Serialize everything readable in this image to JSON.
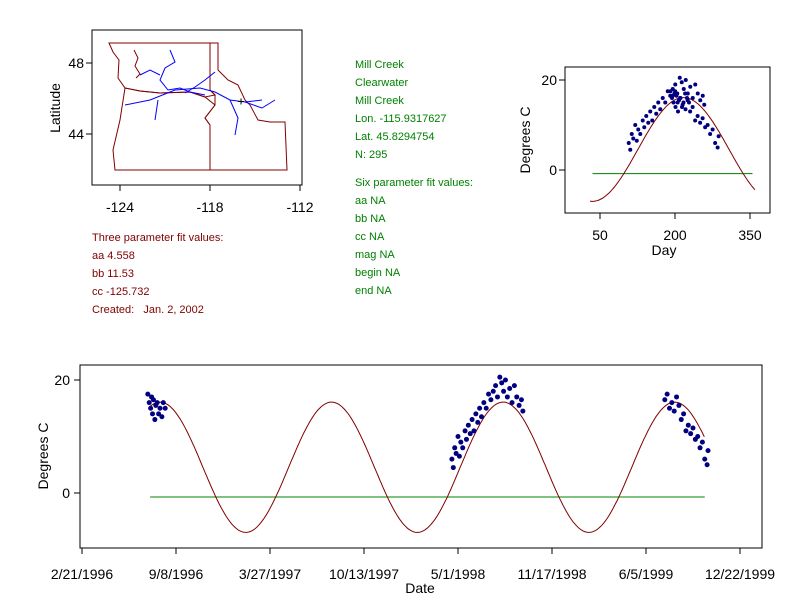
{
  "colors": {
    "fit": "#800000",
    "line": "#008000",
    "points": "#000080",
    "river": "#0000ff",
    "border": "#800000"
  },
  "site": {
    "name": "Mill Creek",
    "basin": "Clearwater",
    "stream": "Mill Creek",
    "lon": "Lon. -115.9317627",
    "lat": "Lat. 45.8294754",
    "n": "N: 295"
  },
  "six_fit": {
    "title": "Six parameter fit values:",
    "aa": "aa NA",
    "bb": "bb NA",
    "cc": "cc NA",
    "mag": "mag NA",
    "begin": "begin NA",
    "end": "end NA"
  },
  "three_fit": {
    "title": "Three parameter fit values:",
    "aa": "aa 4.558",
    "bb": "bb 11.53",
    "cc": "cc -125.732",
    "created": "Created:   Jan. 2, 2002"
  },
  "chart_data": [
    {
      "type": "map",
      "ylabel": "Latitude",
      "xticks": [
        "-124",
        "-118",
        "-112"
      ],
      "yticks": [
        "48",
        "44"
      ],
      "xlim": [
        -126,
        -110.2
      ],
      "site_lon": -115.93,
      "site_lat": 45.83
    },
    {
      "type": "scatter",
      "xlabel": "Day",
      "ylabel": "Degrees C",
      "xticks": [
        "50",
        "200",
        "350"
      ],
      "yticks": [
        "20",
        "0"
      ],
      "xlim": [
        -20,
        390
      ],
      "ylim": [
        -10,
        23
      ],
      "fit": {
        "aa": 4.558,
        "bb": 11.53,
        "cc": -125.732
      },
      "hline": {
        "y": -0.8,
        "from": 35,
        "to": 355
      }
    },
    {
      "type": "scatter",
      "xlabel": "Date",
      "ylabel": "Degrees C",
      "xticks": [
        "2/21/1996",
        "9/8/1996",
        "3/27/1997",
        "10/13/1997",
        "5/1/1998",
        "11/17/1998",
        "6/5/1999",
        "12/22/1999"
      ],
      "xtick_days": [
        0,
        200,
        400,
        600,
        800,
        1000,
        1200,
        1400
      ],
      "yticks": [
        "20",
        "0"
      ],
      "ylim": [
        -10,
        22
      ],
      "x_unit": "days since 2/21/1996",
      "hline": {
        "y": -0.7,
        "from": 145,
        "to": 1325
      },
      "fit_range": [
        145,
        1325
      ],
      "points": [
        [
          140,
          17.5
        ],
        [
          143,
          16
        ],
        [
          146,
          15
        ],
        [
          148,
          17
        ],
        [
          150,
          14
        ],
        [
          152,
          16.5
        ],
        [
          155,
          13
        ],
        [
          157,
          15.5
        ],
        [
          160,
          16
        ],
        [
          163,
          14
        ],
        [
          166,
          15
        ],
        [
          170,
          13.5
        ],
        [
          173,
          16
        ],
        [
          177,
          15
        ],
        [
          787,
          6
        ],
        [
          790,
          4.5
        ],
        [
          793,
          8
        ],
        [
          796,
          7
        ],
        [
          800,
          10
        ],
        [
          803,
          6.5
        ],
        [
          806,
          9
        ],
        [
          810,
          8
        ],
        [
          815,
          11
        ],
        [
          818,
          9.5
        ],
        [
          822,
          12
        ],
        [
          826,
          10.5
        ],
        [
          830,
          13
        ],
        [
          834,
          11
        ],
        [
          838,
          14
        ],
        [
          842,
          12.5
        ],
        [
          846,
          15
        ],
        [
          850,
          13.5
        ],
        [
          855,
          16
        ],
        [
          860,
          15
        ],
        [
          865,
          17.5
        ],
        [
          870,
          16.5
        ],
        [
          875,
          18
        ],
        [
          880,
          19
        ],
        [
          884,
          17
        ],
        [
          889,
          20.5
        ],
        [
          893,
          19.5
        ],
        [
          897,
          18
        ],
        [
          901,
          20
        ],
        [
          905,
          17
        ],
        [
          910,
          18.5
        ],
        [
          915,
          16
        ],
        [
          920,
          19
        ],
        [
          925,
          17
        ],
        [
          930,
          15.5
        ],
        [
          935,
          16.5
        ],
        [
          938,
          14.5
        ],
        [
          1240,
          16.5
        ],
        [
          1245,
          17.5
        ],
        [
          1250,
          15
        ],
        [
          1255,
          16
        ],
        [
          1260,
          14.5
        ],
        [
          1265,
          17
        ],
        [
          1270,
          15.5
        ],
        [
          1275,
          13
        ],
        [
          1280,
          14
        ],
        [
          1285,
          11
        ],
        [
          1290,
          12
        ],
        [
          1295,
          10.5
        ],
        [
          1300,
          11.5
        ],
        [
          1305,
          9.5
        ],
        [
          1310,
          10
        ],
        [
          1315,
          8
        ],
        [
          1320,
          9
        ],
        [
          1325,
          6
        ],
        [
          1330,
          5
        ],
        [
          1332,
          7.5
        ]
      ]
    }
  ]
}
